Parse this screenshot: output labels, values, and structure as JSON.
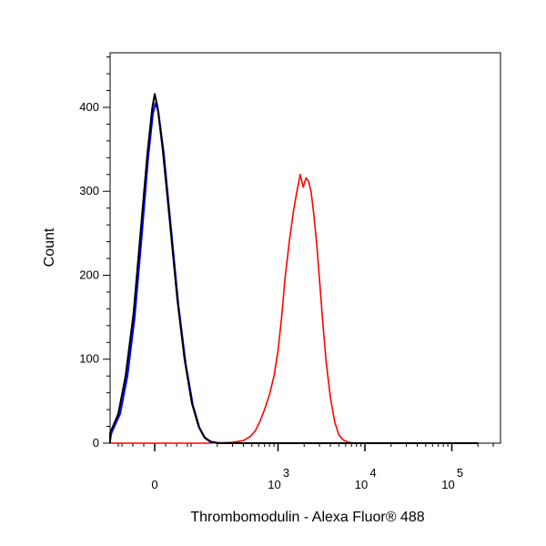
{
  "chart_data": {
    "type": "line",
    "title": "",
    "xlabel": "Thrombomodulin - Alexa Fluor® 488",
    "ylabel": "Count",
    "x_scale": "biexponential",
    "y_ticks": [
      {
        "value": 0,
        "label": "0"
      },
      {
        "value": 100,
        "label": "100"
      },
      {
        "value": 200,
        "label": "200"
      },
      {
        "value": 300,
        "label": "300"
      },
      {
        "value": 400,
        "label": "400"
      }
    ],
    "x_ticks": [
      {
        "value": 0,
        "label": "0",
        "exp": ""
      },
      {
        "value": 1000,
        "label": "10",
        "exp": "3"
      },
      {
        "value": 10000,
        "label": "10",
        "exp": "4"
      },
      {
        "value": 100000,
        "label": "10",
        "exp": "5"
      }
    ],
    "ylim": [
      0,
      465
    ],
    "grid": false,
    "legend": "none",
    "series": [
      {
        "color": "#ff0000",
        "points": [
          [
            -600,
            0
          ],
          [
            150,
            0
          ],
          [
            300,
            1
          ],
          [
            400,
            3
          ],
          [
            480,
            8
          ],
          [
            550,
            15
          ],
          [
            620,
            26
          ],
          [
            700,
            40
          ],
          [
            800,
            58
          ],
          [
            900,
            80
          ],
          [
            1000,
            110
          ],
          [
            1100,
            150
          ],
          [
            1200,
            195
          ],
          [
            1350,
            240
          ],
          [
            1500,
            275
          ],
          [
            1650,
            300
          ],
          [
            1800,
            320
          ],
          [
            1950,
            305
          ],
          [
            2100,
            316
          ],
          [
            2250,
            312
          ],
          [
            2400,
            300
          ],
          [
            2600,
            270
          ],
          [
            2800,
            235
          ],
          [
            3000,
            195
          ],
          [
            3300,
            140
          ],
          [
            3600,
            95
          ],
          [
            4000,
            55
          ],
          [
            4500,
            25
          ],
          [
            5000,
            10
          ],
          [
            5600,
            4
          ],
          [
            6500,
            1
          ],
          [
            8000,
            0
          ],
          [
            200000,
            0
          ]
        ]
      },
      {
        "color": "#0000ff",
        "points": [
          [
            -600,
            0
          ],
          [
            -200,
            0
          ],
          [
            -150,
            3
          ],
          [
            -120,
            12
          ],
          [
            -95,
            35
          ],
          [
            -75,
            80
          ],
          [
            -55,
            150
          ],
          [
            -35,
            250
          ],
          [
            -18,
            340
          ],
          [
            -5,
            392
          ],
          [
            2,
            405
          ],
          [
            10,
            395
          ],
          [
            25,
            345
          ],
          [
            45,
            255
          ],
          [
            65,
            165
          ],
          [
            85,
            95
          ],
          [
            105,
            45
          ],
          [
            125,
            18
          ],
          [
            145,
            6
          ],
          [
            170,
            1
          ],
          [
            220,
            0
          ],
          [
            200000,
            0
          ]
        ]
      },
      {
        "color": "#000000",
        "points": [
          [
            -600,
            0
          ],
          [
            -200,
            0
          ],
          [
            -155,
            3
          ],
          [
            -125,
            12
          ],
          [
            -100,
            35
          ],
          [
            -80,
            80
          ],
          [
            -58,
            155
          ],
          [
            -38,
            255
          ],
          [
            -20,
            345
          ],
          [
            -7,
            398
          ],
          [
            0,
            416
          ],
          [
            8,
            400
          ],
          [
            22,
            350
          ],
          [
            42,
            262
          ],
          [
            62,
            172
          ],
          [
            82,
            100
          ],
          [
            102,
            48
          ],
          [
            122,
            20
          ],
          [
            142,
            7
          ],
          [
            168,
            2
          ],
          [
            210,
            0
          ],
          [
            200000,
            0
          ]
        ]
      }
    ]
  }
}
